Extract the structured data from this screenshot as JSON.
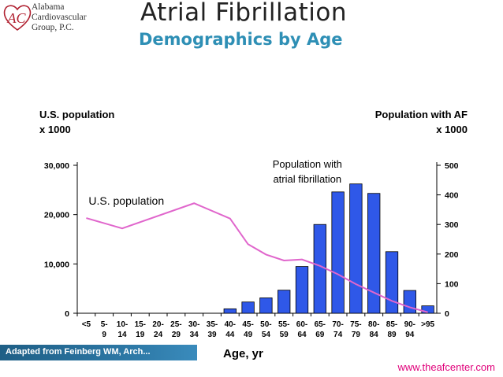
{
  "logo": {
    "line1": "Alabama",
    "line2": "Cardiovascular",
    "line3": "Group, P.C.",
    "mark": "AC"
  },
  "header": {
    "title": "Atrial Fibrillation",
    "subtitle": "Demographics by Age"
  },
  "colors": {
    "bar": "#2f58e8",
    "line": "#e066cc",
    "subtitle": "#2e8fb5",
    "website": "#e0007a"
  },
  "footer": {
    "source": "Adapted from Feinberg WM, Arch...",
    "website": "www.theafcenter.com"
  },
  "chart_data": {
    "type": "bar",
    "xlabel": "Age, yr",
    "ylabel_left": [
      "U.S. population",
      "x 1000"
    ],
    "ylabel_right": [
      "Population with AF",
      "x 1000"
    ],
    "categories": [
      [
        "<5",
        ""
      ],
      [
        "5-",
        "9"
      ],
      [
        "10-",
        "14"
      ],
      [
        "15-",
        "19"
      ],
      [
        "20-",
        "24"
      ],
      [
        "25-",
        "29"
      ],
      [
        "30-",
        "34"
      ],
      [
        "35-",
        "39"
      ],
      [
        "40-",
        "44"
      ],
      [
        "45-",
        "49"
      ],
      [
        "50-",
        "54"
      ],
      [
        "55-",
        "59"
      ],
      [
        "60-",
        "64"
      ],
      [
        "65-",
        "69"
      ],
      [
        "70-",
        "74"
      ],
      [
        "75-",
        "79"
      ],
      [
        "80-",
        "84"
      ],
      [
        "85-",
        "89"
      ],
      [
        "90-",
        "94"
      ],
      [
        ">95",
        ""
      ]
    ],
    "left_axis": {
      "ylim": [
        0,
        30000
      ],
      "ticks": [
        0,
        10000,
        20000,
        30000
      ],
      "tick_labels": [
        "0",
        "10,000",
        "20,000",
        "30,000"
      ]
    },
    "right_axis": {
      "ylim": [
        0,
        500
      ],
      "ticks": [
        0,
        100,
        200,
        300,
        400,
        500
      ],
      "tick_labels": [
        "0",
        "100",
        "200",
        "300",
        "400",
        "500"
      ]
    },
    "series": [
      {
        "name": "Population with atrial fibrillation",
        "kind": "bar",
        "axis": "right",
        "label_lines": [
          "Population with",
          "atrial fibrillation"
        ],
        "values": [
          0,
          0,
          0,
          0,
          0,
          0,
          0,
          0,
          15,
          38,
          52,
          78,
          158,
          300,
          410,
          437,
          405,
          208,
          77,
          25
        ]
      },
      {
        "name": "U.S. population",
        "kind": "line",
        "axis": "left",
        "label_lines": [
          "U.S. population"
        ],
        "x_from": 0,
        "x_to": 19,
        "values": [
          19300,
          null,
          17200,
          null,
          null,
          null,
          22300,
          null,
          19200,
          14000,
          11900,
          10700,
          10900,
          9600,
          7900,
          5900,
          4200,
          2500,
          1200,
          200
        ]
      }
    ]
  }
}
